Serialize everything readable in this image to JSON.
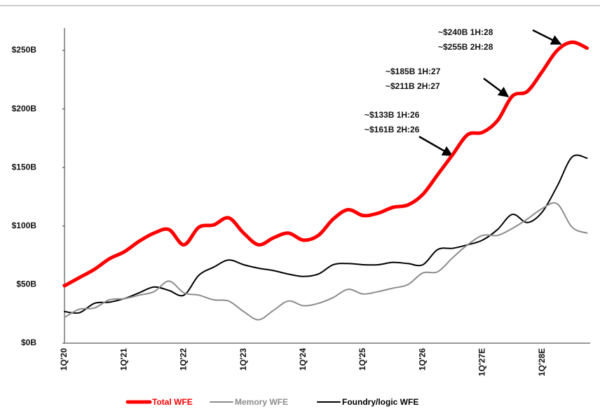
{
  "chart_data": {
    "type": "line",
    "categories": [
      "1Q'20",
      null,
      null,
      null,
      "1Q'21",
      null,
      null,
      null,
      "1Q'22",
      null,
      null,
      null,
      "1Q'23",
      null,
      null,
      null,
      "1Q'24",
      null,
      null,
      null,
      "1Q'25",
      null,
      null,
      null,
      "1Q'26",
      null,
      null,
      null,
      "1Q'27E",
      null,
      null,
      null,
      "1Q'28E",
      null,
      null,
      null
    ],
    "series": [
      {
        "name": "Total WFE",
        "color": "#ff0000",
        "width": 5,
        "values": [
          49,
          56,
          63,
          72,
          78,
          87,
          94,
          97,
          84,
          99,
          101,
          107,
          94,
          84,
          90,
          94,
          88,
          92,
          106,
          114,
          109,
          111,
          116,
          118,
          127,
          144,
          161,
          178,
          180,
          190,
          211,
          215,
          232,
          250,
          257,
          252
        ]
      },
      {
        "name": "Memory WFE",
        "color": "#8c8c8c",
        "width": 2,
        "values": [
          22,
          29,
          30,
          37,
          38,
          41,
          44,
          53,
          43,
          41,
          37,
          36,
          27,
          20,
          28,
          36,
          32,
          34,
          39,
          46,
          42,
          44,
          47,
          50,
          60,
          61,
          73,
          84,
          92,
          92,
          98,
          106,
          115,
          119,
          99,
          94
        ]
      },
      {
        "name": "Foundry/logic WFE",
        "color": "#000000",
        "width": 2,
        "values": [
          27,
          26,
          34,
          35,
          38,
          43,
          48,
          45,
          41,
          58,
          65,
          71,
          67,
          64,
          62,
          59,
          57,
          59,
          67,
          68,
          67,
          67,
          69,
          68,
          67,
          80,
          81,
          84,
          88,
          97,
          110,
          103,
          112,
          134,
          159,
          158
        ]
      }
    ],
    "ylim": [
      0,
      270
    ],
    "yticks": [
      {
        "value": 0,
        "label": "$0B"
      },
      {
        "value": 50,
        "label": "$50B"
      },
      {
        "value": 100,
        "label": "$100B"
      },
      {
        "value": 150,
        "label": "$150B"
      },
      {
        "value": 200,
        "label": "$200B"
      },
      {
        "value": 250,
        "label": "$250B"
      }
    ],
    "annotations": [
      [
        "~$240B 1H:28",
        "~$255B 2H:28"
      ],
      [
        "~$185B 1H:27",
        "~$211B 2H:27"
      ],
      [
        "~$133B 1H:26",
        "~$161B 2H:26"
      ]
    ],
    "grid": false
  }
}
